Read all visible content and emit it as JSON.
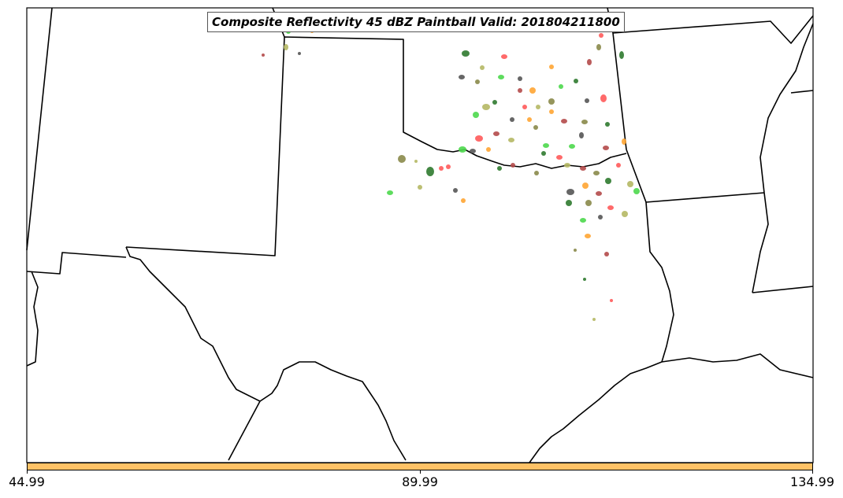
{
  "title": "Composite Reflectivity 45 dBZ Paintball Valid: 201804211800",
  "colorbar": {
    "color": "#ffc266",
    "tick_labels": [
      "44.99",
      "89.99",
      "134.99"
    ]
  },
  "map": {
    "background": "#ffffff",
    "border_color": "#000000",
    "region": "South Central US",
    "paintball_colors": [
      "#ff5a5a",
      "#b44a4a",
      "#4dd84d",
      "#2f7a2f",
      "#ffa533",
      "#b5b864",
      "#8a8a4a",
      "#555555"
    ]
  }
}
